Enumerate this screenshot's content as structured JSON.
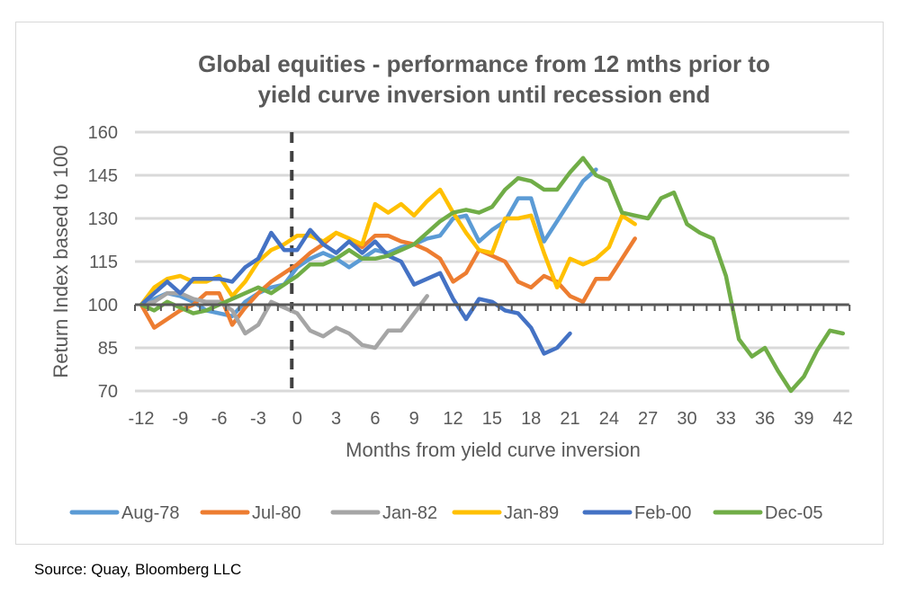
{
  "chart_data": {
    "type": "line",
    "title": "Global equities - performance from 12 mths prior to yield curve inversion until recession end",
    "title_lines": [
      "Global equities - performance from 12 mths prior to",
      "yield curve inversion until recession end"
    ],
    "xlabel": "Months from yield curve inversion",
    "ylabel": "Return Index based to 100",
    "xlim": [
      -12,
      42
    ],
    "ylim": [
      70,
      160
    ],
    "x_ticks": [
      -12,
      -9,
      -6,
      -3,
      0,
      3,
      6,
      9,
      12,
      15,
      18,
      21,
      24,
      27,
      30,
      33,
      36,
      39,
      42
    ],
    "y_ticks": [
      70,
      85,
      100,
      115,
      130,
      145,
      160
    ],
    "grid": true,
    "baseline": 100,
    "inversion_marker_x": 0,
    "legend_position": "bottom",
    "x_start": -12,
    "series": [
      {
        "name": "Aug-78",
        "color": "#5B9BD5",
        "values": [
          100,
          102,
          104,
          103,
          101,
          98,
          97,
          96,
          101,
          104,
          106,
          107,
          113,
          116,
          118,
          116,
          113,
          116,
          119,
          118,
          120,
          121,
          123,
          124,
          130,
          131,
          122,
          126,
          129,
          137,
          137,
          122,
          129,
          136,
          143,
          147
        ]
      },
      {
        "name": "Jul-80",
        "color": "#ED7D31",
        "values": [
          100,
          92,
          95,
          98,
          100,
          104,
          104,
          93,
          99,
          104,
          108,
          111,
          114,
          118,
          121,
          125,
          123,
          120,
          124,
          124,
          122,
          121,
          119,
          116,
          108,
          111,
          119,
          117,
          115,
          108,
          106,
          110,
          108,
          103,
          101,
          109,
          109,
          116,
          123
        ]
      },
      {
        "name": "Jan-82",
        "color": "#A5A5A5",
        "values": [
          100,
          101,
          104,
          104,
          102,
          101,
          101,
          98,
          90,
          93,
          101,
          99,
          97,
          91,
          89,
          92,
          90,
          86,
          85,
          91,
          91,
          97,
          103
        ]
      },
      {
        "name": "Jan-89",
        "color": "#FFC000",
        "values": [
          100,
          106,
          109,
          110,
          108,
          108,
          110,
          103,
          108,
          115,
          119,
          121,
          124,
          124,
          122,
          125,
          123,
          121,
          135,
          132,
          135,
          131,
          136,
          140,
          132,
          125,
          119,
          118,
          130,
          130,
          131,
          118,
          106,
          116,
          114,
          116,
          120,
          131,
          128
        ]
      },
      {
        "name": "Feb-00",
        "color": "#4472C4",
        "values": [
          100,
          104,
          108,
          104,
          109,
          109,
          109,
          108,
          113,
          116,
          125,
          119,
          119,
          126,
          121,
          118,
          122,
          118,
          122,
          117,
          115,
          107,
          109,
          111,
          102,
          95,
          102,
          101,
          98,
          97,
          92,
          83,
          85,
          90
        ]
      },
      {
        "name": "Dec-05",
        "color": "#70AD47",
        "values": [
          100,
          98,
          101,
          99,
          97,
          98,
          100,
          102,
          104,
          106,
          104,
          107,
          110,
          114,
          114,
          116,
          119,
          116,
          116,
          117,
          119,
          121,
          125,
          129,
          132,
          133,
          132,
          134,
          140,
          144,
          143,
          140,
          140,
          146,
          151,
          145,
          143,
          132,
          131,
          130,
          137,
          139,
          128,
          125,
          123,
          110,
          88,
          82,
          85,
          77,
          70,
          75,
          84,
          91,
          90
        ]
      }
    ]
  },
  "source": "Source: Quay, Bloomberg LLC"
}
